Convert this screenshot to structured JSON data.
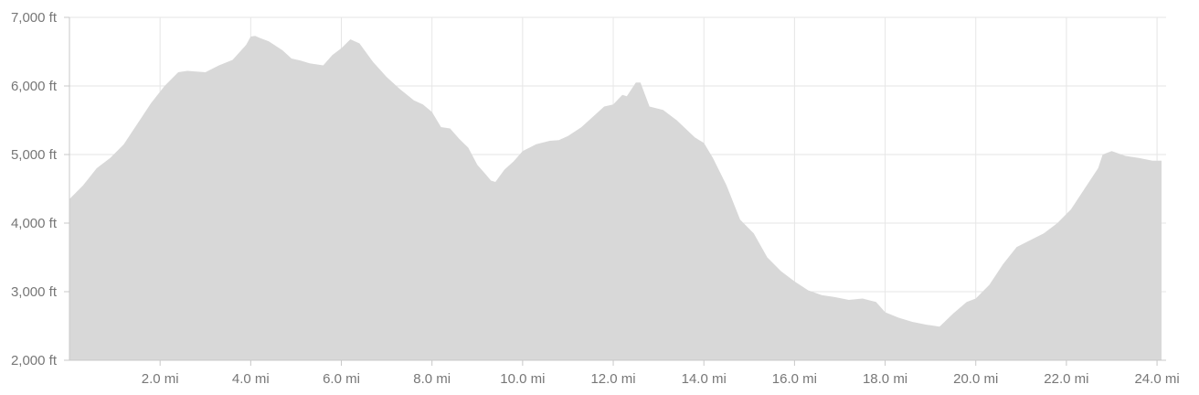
{
  "chart_data": {
    "type": "area",
    "title": "",
    "xlabel": "",
    "ylabel": "",
    "x_unit": "mi",
    "y_unit": "ft",
    "xlim": [
      0,
      24.2
    ],
    "ylim": [
      2000,
      7000
    ],
    "grid": true,
    "legend": "none",
    "colors": {
      "area": "#d8d8d8",
      "grid": "#e6e6e6",
      "axis": "#c8c8c8",
      "tick_text": "#777777"
    },
    "y_ticks": [
      {
        "value": 2000,
        "label": "2,000 ft"
      },
      {
        "value": 3000,
        "label": "3,000 ft"
      },
      {
        "value": 4000,
        "label": "4,000 ft"
      },
      {
        "value": 5000,
        "label": "5,000 ft"
      },
      {
        "value": 6000,
        "label": "6,000 ft"
      },
      {
        "value": 7000,
        "label": "7,000 ft"
      }
    ],
    "x_ticks": [
      {
        "value": 2,
        "label": "2.0 mi"
      },
      {
        "value": 4,
        "label": "4.0 mi"
      },
      {
        "value": 6,
        "label": "6.0 mi"
      },
      {
        "value": 8,
        "label": "8.0 mi"
      },
      {
        "value": 10,
        "label": "10.0 mi"
      },
      {
        "value": 12,
        "label": "12.0 mi"
      },
      {
        "value": 14,
        "label": "14.0 mi"
      },
      {
        "value": 16,
        "label": "16.0 mi"
      },
      {
        "value": 18,
        "label": "18.0 mi"
      },
      {
        "value": 20,
        "label": "20.0 mi"
      },
      {
        "value": 22,
        "label": "22.0 mi"
      },
      {
        "value": 24,
        "label": "24.0 mi"
      }
    ],
    "series": [
      {
        "x": [
          0,
          0.3,
          0.6,
          0.9,
          1.2,
          1.5,
          1.8,
          2.1,
          2.4,
          2.6,
          2.8,
          3.0,
          3.3,
          3.6,
          3.9,
          4.0,
          4.1,
          4.2,
          4.4,
          4.7,
          4.9,
          5.1,
          5.3,
          5.6,
          5.8,
          6.0,
          6.2,
          6.4,
          6.7,
          7.0,
          7.3,
          7.6,
          7.8,
          8.0,
          8.2,
          8.4,
          8.6,
          8.8,
          9.0,
          9.2,
          9.3,
          9.4,
          9.6,
          9.8,
          10.0,
          10.3,
          10.6,
          10.8,
          11.0,
          11.3,
          11.6,
          11.8,
          12.0,
          12.1,
          12.2,
          12.3,
          12.5,
          12.6,
          12.8,
          13.1,
          13.4,
          13.8,
          14.0,
          14.2,
          14.5,
          14.8,
          15.1,
          15.4,
          15.7,
          16.0,
          16.3,
          16.6,
          16.9,
          17.2,
          17.5,
          17.8,
          18.0,
          18.3,
          18.6,
          18.9,
          19.2,
          19.5,
          19.8,
          20.0,
          20.3,
          20.6,
          20.9,
          21.2,
          21.5,
          21.8,
          22.1,
          22.4,
          22.7,
          22.8,
          23.0,
          23.3,
          23.6,
          23.9,
          24.1
        ],
        "y": [
          4350,
          4550,
          4800,
          4950,
          5150,
          5450,
          5750,
          6000,
          6200,
          6220,
          6210,
          6200,
          6300,
          6380,
          6600,
          6720,
          6730,
          6700,
          6650,
          6520,
          6400,
          6370,
          6330,
          6300,
          6450,
          6550,
          6680,
          6620,
          6350,
          6130,
          5950,
          5790,
          5730,
          5620,
          5400,
          5380,
          5230,
          5100,
          4850,
          4700,
          4620,
          4600,
          4780,
          4900,
          5050,
          5150,
          5200,
          5210,
          5270,
          5400,
          5580,
          5700,
          5730,
          5800,
          5870,
          5850,
          6050,
          6050,
          5700,
          5650,
          5500,
          5250,
          5170,
          4950,
          4550,
          4050,
          3850,
          3500,
          3300,
          3150,
          3020,
          2950,
          2920,
          2880,
          2900,
          2850,
          2700,
          2620,
          2560,
          2520,
          2490,
          2680,
          2850,
          2900,
          3100,
          3400,
          3650,
          3750,
          3850,
          4000,
          4200,
          4500,
          4800,
          5000,
          5050,
          4980,
          4950,
          4910,
          4910
        ]
      }
    ]
  }
}
